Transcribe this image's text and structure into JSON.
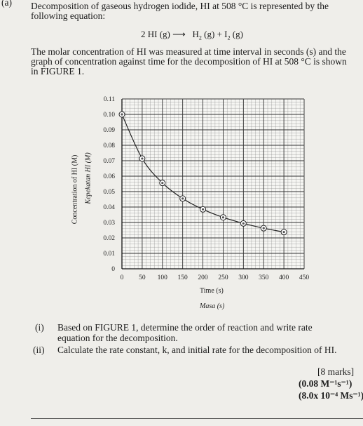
{
  "question": {
    "part_label": "(a)",
    "intro_line1": "Decomposition of gaseous hydrogen iodide, HI at 508 °C is represented by the",
    "intro_line2": "following equation:",
    "equation_left": "2 HI (g) ⟶",
    "equation_right_h2": "H",
    "equation_right_rest": " (g) + I",
    "equation_right_tail": " (g)",
    "para_line1": "The molar concentration of HI was measured at time interval in seconds (s) and the",
    "para_line2": "graph of concentration against time for the decomposition of HI at 508 °C is shown",
    "para_line3": "in FIGURE 1.",
    "sub_i_label": "(i)",
    "sub_i_line1": "Based on FIGURE 1, determine the order of reaction and write rate",
    "sub_i_line2": "equation for the decomposition.",
    "sub_ii_label": "(ii)",
    "sub_ii_text": "Calculate the rate constant, k, and initial rate for the decomposition of HI.",
    "marks": "[8 marks]",
    "answer1": "(0.08 M⁻¹s⁻¹)",
    "answer2": "(8.0x 10⁻⁴ Ms⁻¹)"
  },
  "chart_data": {
    "type": "scatter",
    "xlabel": "Time (s)",
    "xlabel_alt": "Masa (s)",
    "ylabel": "Concentration of HI (M)",
    "ylabel_alt": "Kepekatan HI (M)",
    "xlim": [
      0,
      450
    ],
    "ylim": [
      0,
      0.11
    ],
    "x_ticks": [
      "0",
      "50",
      "100",
      "150",
      "200",
      "250",
      "300",
      "350",
      "400",
      "450"
    ],
    "y_ticks": [
      "0",
      "0.01",
      "0.02",
      "0.03",
      "0.04",
      "0.05",
      "0.06",
      "0.07",
      "0.08",
      "0.09",
      "0.10",
      "0.11"
    ],
    "grid": true,
    "series": [
      {
        "x": [
          0,
          50,
          100,
          150,
          200,
          250,
          300,
          350,
          400
        ],
        "y": [
          0.1,
          0.0714,
          0.0556,
          0.0455,
          0.0385,
          0.0333,
          0.0294,
          0.0263,
          0.0238
        ],
        "curve": "smooth"
      }
    ]
  }
}
